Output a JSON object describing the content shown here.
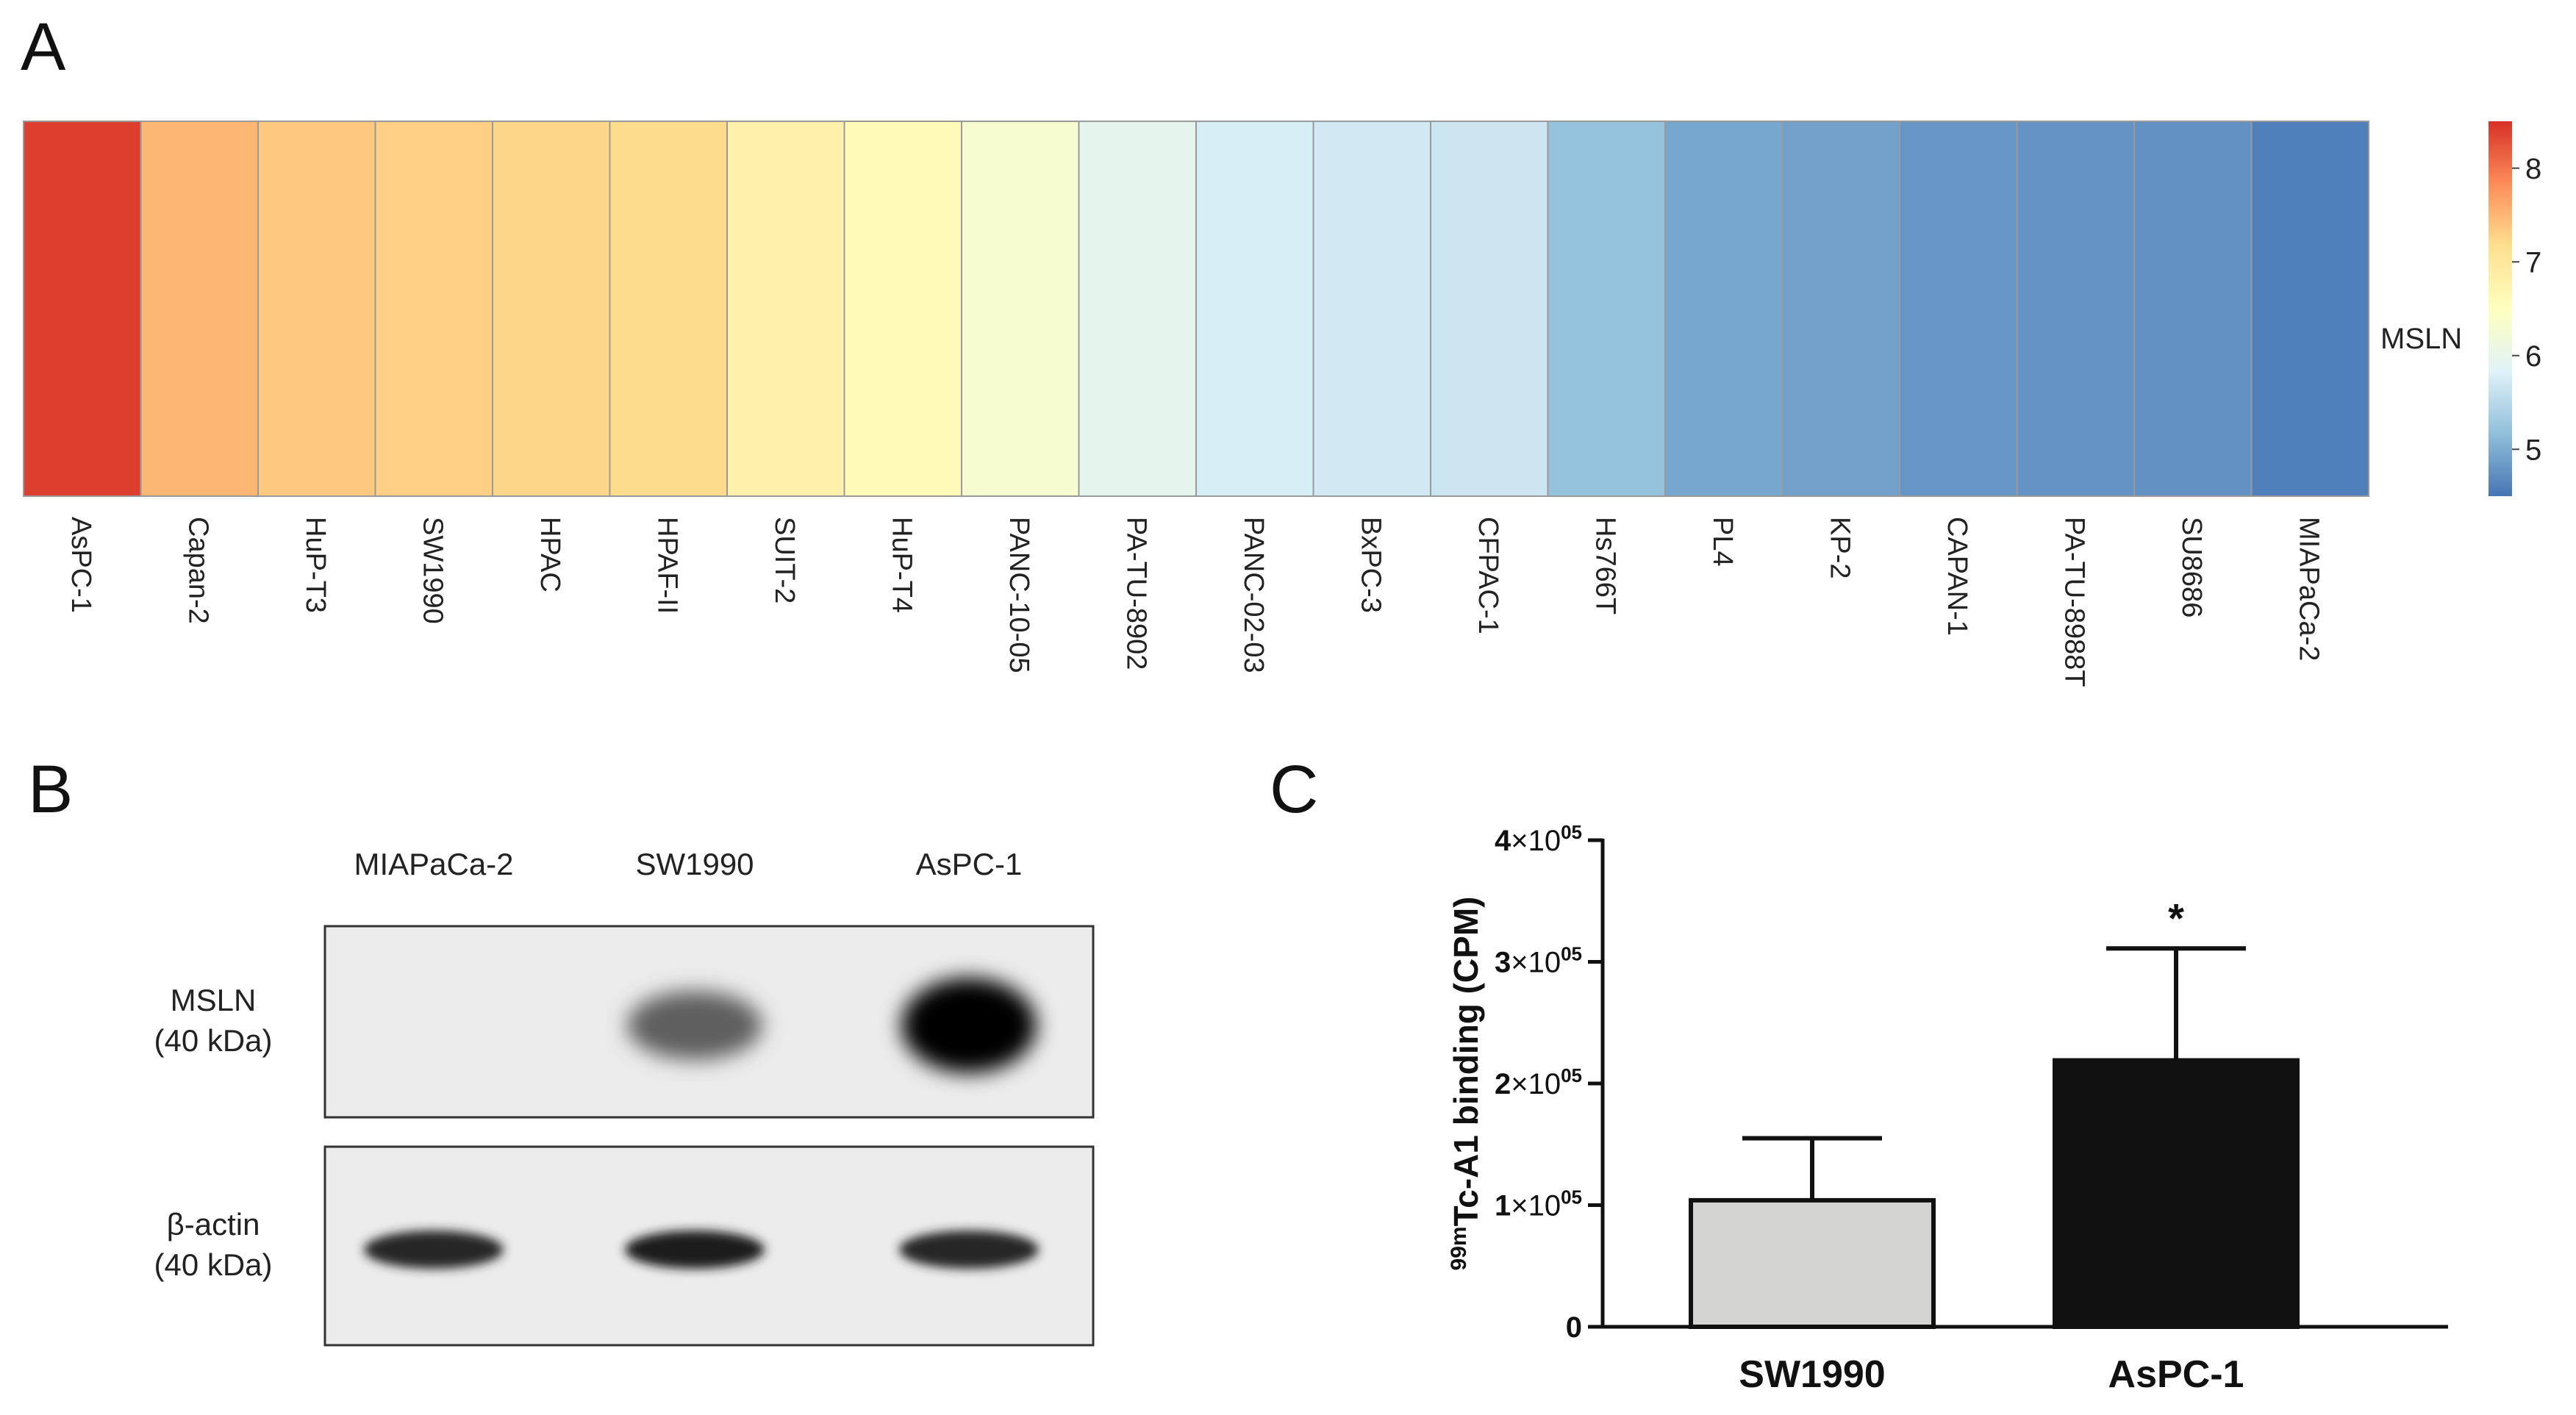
{
  "panels": {
    "a": {
      "letter": "A"
    },
    "b": {
      "letter": "B"
    },
    "c": {
      "letter": "C"
    }
  },
  "chart_data": [
    {
      "type": "heatmap",
      "panel": "A",
      "row_label": "MSLN",
      "columns": [
        "AsPC-1",
        "Capan-2",
        "HuP-T3",
        "SW1990",
        "HPAC",
        "HPAF-II",
        "SUIT-2",
        "HuP-T4",
        "PANC-10-05",
        "PA-TU-8902",
        "PANC-02-03",
        "BxPC-3",
        "CFPAC-1",
        "Hs766T",
        "PL4",
        "KP-2",
        "CAPAN-1",
        "PA-TU-8988T",
        "SU8686",
        "MIAPaCa-2"
      ],
      "values": [
        8.4,
        7.5,
        7.35,
        7.3,
        7.25,
        7.2,
        6.8,
        6.6,
        6.3,
        5.95,
        5.75,
        5.7,
        5.65,
        5.2,
        4.95,
        4.9,
        4.8,
        4.78,
        4.75,
        4.6
      ],
      "color_scale": {
        "min": 4.5,
        "max": 8.5,
        "colors": [
          "#4575b4",
          "#91bfdb",
          "#e0f3f8",
          "#ffffbf",
          "#fee090",
          "#fc8d59",
          "#d73027"
        ],
        "ticks": [
          "5",
          "6",
          "7",
          "8"
        ]
      }
    },
    {
      "type": "table",
      "panel": "B",
      "lanes": [
        "MIAPaCa-2",
        "SW1990",
        "AsPC-1"
      ],
      "rows": [
        {
          "label_line1": "MSLN",
          "label_line2": "(40 kDa)",
          "band_intensity": [
            0,
            0.6,
            1.0
          ]
        },
        {
          "label_line1": "β-actin",
          "label_line2": "(40 kDa)",
          "band_intensity": [
            0.85,
            0.9,
            0.85
          ]
        }
      ]
    },
    {
      "type": "bar",
      "panel": "C",
      "categories": [
        "SW1990",
        "AsPC-1"
      ],
      "values": [
        104000,
        219000
      ],
      "errors": [
        51000,
        92000
      ],
      "colors": [
        "#d4d5d2",
        "#111111"
      ],
      "ylim": [
        0,
        400000
      ],
      "yticks": [
        0,
        100000,
        200000,
        300000,
        400000
      ],
      "ytick_labels": {
        "zero": "0",
        "mult": "×10",
        "exp": "05",
        "mantissas": [
          "1",
          "2",
          "3",
          "4"
        ]
      },
      "ylabel": {
        "sup": "99m",
        "text": "Tc-A1 binding (CPM)"
      },
      "significance": "*"
    }
  ]
}
